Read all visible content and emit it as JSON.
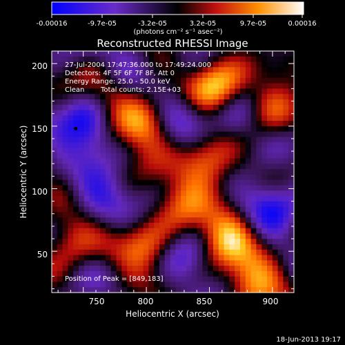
{
  "colorbar": {
    "tick_labels": [
      "-0.00016",
      "-9.7e-05",
      "-3.2e-05",
      "3.2e-05",
      "9.7e-05",
      "0.00016"
    ],
    "unit_label": "(photons cm⁻² s⁻¹ asec⁻²)",
    "min": -0.00016,
    "max": 0.00016
  },
  "chart_data": {
    "type": "heatmap",
    "title": "Reconstructed RHESSI Image",
    "xlabel": "Heliocentric X (arcsec)",
    "ylabel": "Heliocentric Y (arcsec)",
    "xlim": [
      725,
      917
    ],
    "ylim": [
      17,
      210
    ],
    "x_ticks": [
      750,
      800,
      850,
      900
    ],
    "y_ticks": [
      50,
      100,
      150,
      200
    ],
    "annotations": [
      "27-Jul-2004 17:47:36.000 to 17:49:24.000",
      "Detectors: 4F 5F 6F 7F 8F, Att 0",
      "Energy Range: 25.0 - 50.0 keV",
      "Clean",
      "Total counts: 2.15E+03"
    ],
    "peak_label": "Position of Peak = [849,183]",
    "peak": [
      849,
      183
    ],
    "marker": [
      744,
      148
    ],
    "bright_regions": [
      {
        "x": 855,
        "y": 183,
        "w": 1.0
      },
      {
        "x": 798,
        "y": 150,
        "w": 0.9
      },
      {
        "x": 848,
        "y": 120,
        "w": 0.8
      },
      {
        "x": 865,
        "y": 62,
        "w": 0.9
      },
      {
        "x": 885,
        "y": 25,
        "w": 0.8
      },
      {
        "x": 800,
        "y": 52,
        "w": 0.7
      },
      {
        "x": 770,
        "y": 180,
        "w": 0.6
      },
      {
        "x": 738,
        "y": 60,
        "w": 0.6
      },
      {
        "x": 900,
        "y": 165,
        "w": 0.6
      },
      {
        "x": 828,
        "y": 90,
        "w": 0.5
      }
    ],
    "dark_regions": [
      {
        "x": 752,
        "y": 150,
        "w": 1.0
      },
      {
        "x": 900,
        "y": 88,
        "w": 0.8
      },
      {
        "x": 828,
        "y": 160,
        "w": 0.6
      },
      {
        "x": 762,
        "y": 95,
        "w": 0.6
      },
      {
        "x": 870,
        "y": 150,
        "w": 0.5
      },
      {
        "x": 830,
        "y": 40,
        "w": 0.5
      },
      {
        "x": 780,
        "y": 200,
        "w": 0.5
      }
    ]
  },
  "footer": {
    "timestamp": "18-Jun-2013 19:17"
  }
}
